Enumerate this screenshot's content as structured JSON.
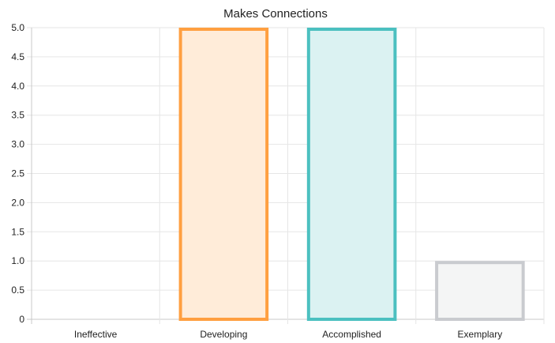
{
  "chart_data": {
    "type": "bar",
    "title": "Makes Connections",
    "categories": [
      "Ineffective",
      "Developing",
      "Accomplished",
      "Exemplary"
    ],
    "values": [
      0,
      5,
      5,
      1
    ],
    "ylim": [
      0,
      5
    ],
    "yticks": [
      "0",
      "0.5",
      "1.0",
      "1.5",
      "2.0",
      "2.5",
      "3.0",
      "3.5",
      "4.0",
      "4.5",
      "5.0"
    ],
    "grid": true,
    "legend": "none",
    "bar_colors": [
      {
        "border": "#4bc0c0",
        "fill": "#dbf2f2"
      },
      {
        "border": "#ff9f40",
        "fill": "#ffecd9"
      },
      {
        "border": "#4bc0c0",
        "fill": "#dbf2f2"
      },
      {
        "border": "#c9cbcf",
        "fill": "#f4f5f5"
      }
    ]
  }
}
